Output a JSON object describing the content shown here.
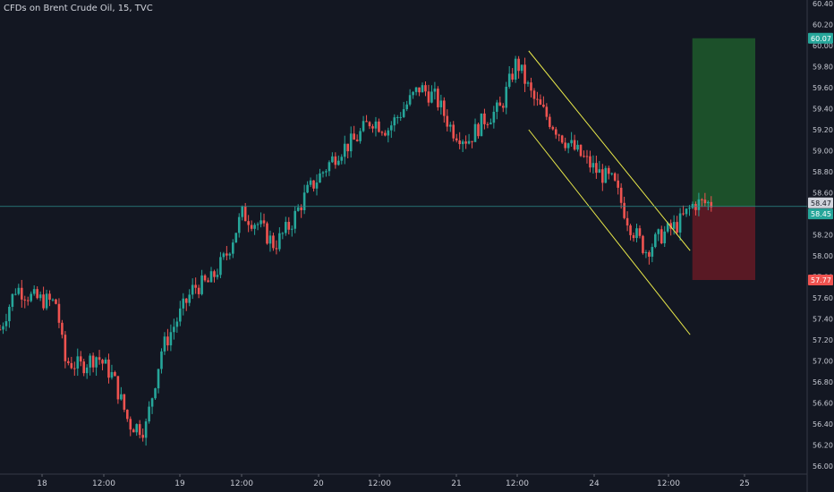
{
  "title": "CFDs on Brent Crude Oil, 15, TVC",
  "colors": {
    "background": "#131722",
    "up": "#26a69a",
    "down": "#ef5350",
    "channel": "#e8e84a",
    "profit_zone": "#1e5a2c",
    "loss_zone": "#6b1a26",
    "crosshair": "#2b8a8a"
  },
  "chart_data": {
    "type": "candlestick",
    "symbol": "CFDs on Brent Crude Oil",
    "interval": "15",
    "source": "TVC",
    "ylim": [
      56.0,
      60.4
    ],
    "y_ticks": [
      "60.40",
      "60.20",
      "60.00",
      "59.80",
      "59.60",
      "59.40",
      "59.20",
      "59.00",
      "58.80",
      "58.60",
      "58.40",
      "58.20",
      "58.00",
      "57.80",
      "57.60",
      "57.40",
      "57.20",
      "57.00",
      "56.80",
      "56.60",
      "56.40",
      "56.20",
      "56.00"
    ],
    "x_ticks": [
      "18",
      "12:00",
      "19",
      "12:00",
      "20",
      "12:00",
      "21",
      "12:00",
      "24",
      "12:00",
      "25"
    ],
    "price_path": [
      [
        0,
        57.3
      ],
      [
        2,
        57.7
      ],
      [
        4,
        57.6
      ],
      [
        7,
        57.55
      ],
      [
        8,
        57.0
      ],
      [
        10,
        56.95
      ],
      [
        12,
        57.05
      ],
      [
        14,
        56.85
      ],
      [
        16,
        56.4
      ],
      [
        18,
        56.35
      ],
      [
        20,
        57.1
      ],
      [
        22,
        57.4
      ],
      [
        24,
        57.7
      ],
      [
        26,
        57.75
      ],
      [
        28,
        58.0
      ],
      [
        30,
        58.4
      ],
      [
        32,
        58.3
      ],
      [
        34,
        58.1
      ],
      [
        36,
        58.3
      ],
      [
        38,
        58.6
      ],
      [
        40,
        58.8
      ],
      [
        42,
        59.0
      ],
      [
        44,
        59.1
      ],
      [
        46,
        59.3
      ],
      [
        48,
        59.2
      ],
      [
        50,
        59.4
      ],
      [
        52,
        59.6
      ],
      [
        54,
        59.5
      ],
      [
        56,
        59.2
      ],
      [
        58,
        59.1
      ],
      [
        60,
        59.3
      ],
      [
        62,
        59.4
      ],
      [
        64,
        59.85
      ],
      [
        66,
        59.5
      ],
      [
        68,
        59.3
      ],
      [
        70,
        59.1
      ],
      [
        72,
        58.95
      ],
      [
        74,
        58.8
      ],
      [
        76,
        58.7
      ],
      [
        78,
        58.3
      ],
      [
        80,
        58.05
      ],
      [
        82,
        58.2
      ],
      [
        84,
        58.3
      ],
      [
        86,
        58.5
      ],
      [
        88,
        58.5
      ]
    ],
    "channel": {
      "upper": {
        "from": {
          "x": 65.5,
          "y": 59.95
        },
        "to": {
          "x": 85.5,
          "y": 58.05
        }
      },
      "lower": {
        "from": {
          "x": 65.5,
          "y": 59.2
        },
        "to": {
          "x": 85.5,
          "y": 57.25
        }
      }
    },
    "position": {
      "type": "long",
      "entry": 58.47,
      "target": 60.07,
      "stop": 57.77,
      "x_from": 86,
      "x_to": 100
    },
    "last_price": 58.45,
    "price_tags": [
      {
        "label": "60.07",
        "value": 60.07,
        "bg": "#26a69a"
      },
      {
        "label": "58.47",
        "value": 58.47,
        "bg": "#d1d4dc"
      },
      {
        "label": "58.45",
        "value": 58.45,
        "bg": "#26a69a"
      },
      {
        "label": "57.77",
        "value": 57.77,
        "bg": "#ef5350"
      }
    ]
  }
}
